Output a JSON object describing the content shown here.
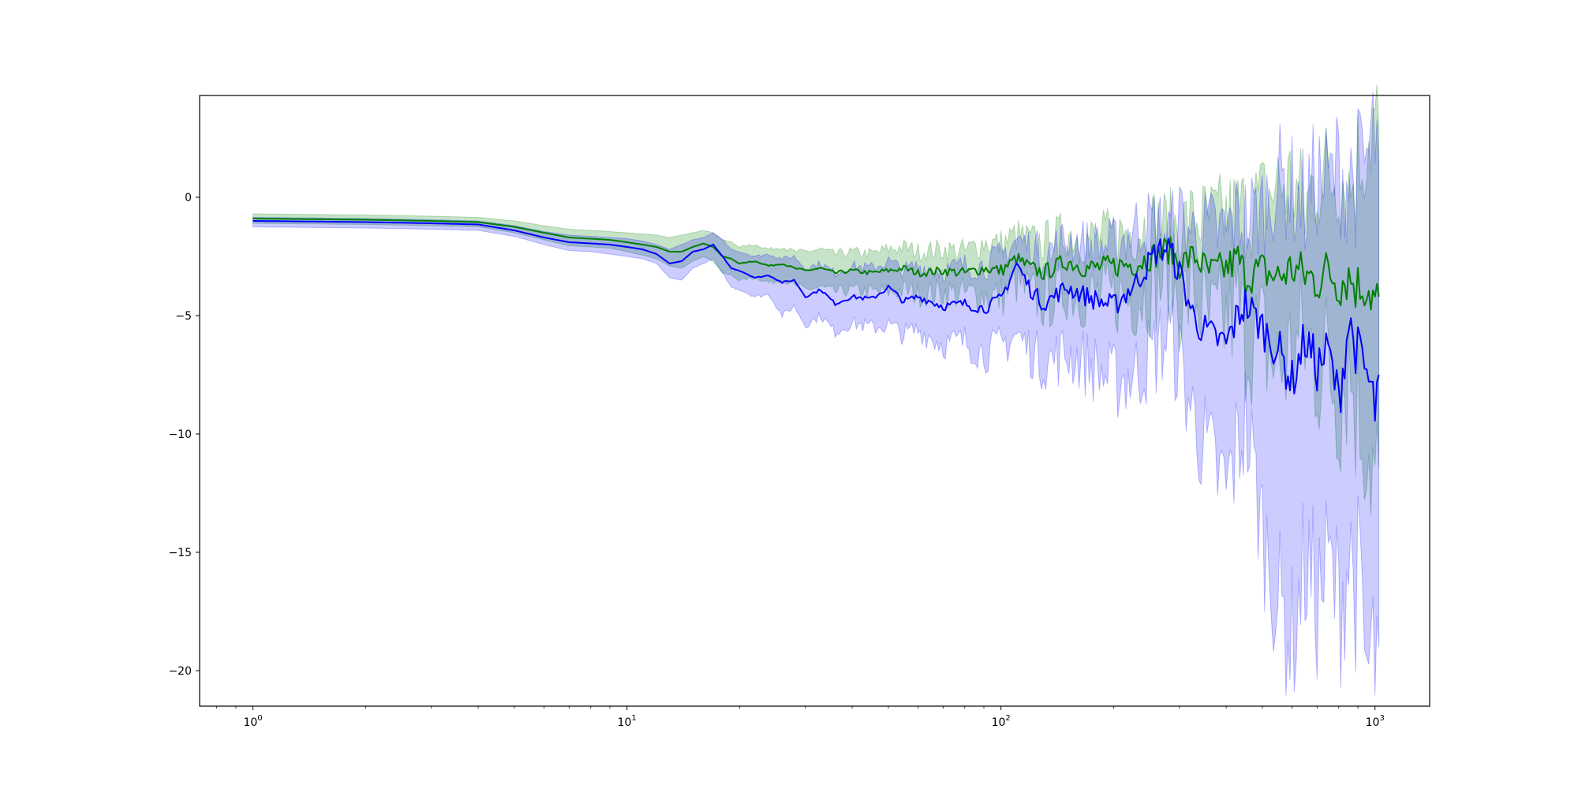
{
  "chart_data": {
    "type": "line",
    "title": "",
    "xlabel": "",
    "ylabel": "",
    "xscale": "log",
    "xlim": [
      0.72,
      1400
    ],
    "ylim": [
      -21.5,
      4.3
    ],
    "grid": false,
    "legend": "none",
    "x_ticks": [
      {
        "value": 1,
        "base": "10",
        "exp": "0"
      },
      {
        "value": 10,
        "base": "10",
        "exp": "1"
      },
      {
        "value": 100,
        "base": "10",
        "exp": "2"
      },
      {
        "value": 1000,
        "base": "10",
        "exp": "3"
      }
    ],
    "y_ticks": [
      {
        "value": 0,
        "label": "0"
      },
      {
        "value": -5,
        "label": "−5"
      },
      {
        "value": -10,
        "label": "−10"
      },
      {
        "value": -15,
        "label": "−15"
      },
      {
        "value": -20,
        "label": "−20"
      }
    ],
    "series": [
      {
        "color": "#008000",
        "x": [
          1,
          2,
          3,
          4,
          5,
          6,
          7,
          8,
          9,
          10,
          11,
          12,
          13,
          14,
          15,
          16,
          17,
          18,
          19,
          20,
          22,
          24,
          26,
          28,
          30,
          33,
          36,
          40,
          45,
          50,
          55,
          60,
          70,
          80,
          90,
          100,
          110,
          120,
          130,
          150,
          170,
          200,
          230,
          260,
          280,
          300,
          330,
          360,
          400,
          430,
          450,
          500,
          550,
          600,
          650,
          700,
          750,
          800,
          850,
          900,
          950,
          1000,
          1024
        ],
        "values": [
          -0.9,
          -0.95,
          -1.0,
          -1.05,
          -1.25,
          -1.5,
          -1.7,
          -1.75,
          -1.8,
          -1.9,
          -2.0,
          -2.1,
          -2.3,
          -2.3,
          -2.1,
          -1.95,
          -2.1,
          -2.5,
          -2.6,
          -2.8,
          -2.7,
          -2.9,
          -2.8,
          -3.0,
          -3.1,
          -3.0,
          -3.2,
          -3.1,
          -3.2,
          -3.1,
          -3.0,
          -3.2,
          -3.1,
          -3.2,
          -3.0,
          -3.1,
          -2.6,
          -3.0,
          -3.2,
          -2.7,
          -3.0,
          -2.9,
          -2.8,
          -2.4,
          -2.2,
          -2.8,
          -2.5,
          -3.2,
          -3.0,
          -2.6,
          -3.3,
          -3.1,
          -3.4,
          -3.0,
          -3.3,
          -3.5,
          -3.1,
          -3.6,
          -3.3,
          -3.8,
          -3.6,
          -4.4,
          -4.2
        ],
        "band_upper": [
          -0.7,
          -0.75,
          -0.8,
          -0.85,
          -1.0,
          -1.2,
          -1.35,
          -1.4,
          -1.45,
          -1.5,
          -1.55,
          -1.6,
          -1.7,
          -1.6,
          -1.5,
          -1.4,
          -1.5,
          -1.8,
          -1.9,
          -2.1,
          -2.0,
          -2.2,
          -2.1,
          -2.3,
          -2.3,
          -2.2,
          -2.4,
          -2.3,
          -2.4,
          -2.2,
          -2.1,
          -2.3,
          -2.2,
          -2.3,
          -1.9,
          -2.0,
          -1.6,
          -1.9,
          -1.9,
          -1.5,
          -1.8,
          -1.6,
          -1.4,
          -1.0,
          -1.2,
          -1.2,
          -0.9,
          -1.0,
          -0.8,
          -0.6,
          -0.6,
          -0.2,
          0.5,
          0.6,
          -0.6,
          1.0,
          0.8,
          1.2,
          0.3,
          1.4,
          2.6,
          3.2,
          3.0
        ],
        "band_lower": [
          -1.1,
          -1.15,
          -1.2,
          -1.25,
          -1.5,
          -1.8,
          -2.05,
          -2.1,
          -2.15,
          -2.3,
          -2.45,
          -2.6,
          -2.9,
          -3.0,
          -2.7,
          -2.5,
          -2.7,
          -3.2,
          -3.3,
          -3.5,
          -3.4,
          -3.6,
          -3.5,
          -3.7,
          -3.9,
          -3.8,
          -4.0,
          -3.9,
          -4.0,
          -4.0,
          -3.9,
          -4.1,
          -4.0,
          -4.1,
          -4.1,
          -4.2,
          -3.6,
          -4.1,
          -4.5,
          -3.9,
          -4.2,
          -4.2,
          -4.2,
          -3.8,
          -3.2,
          -4.4,
          -4.1,
          -5.4,
          -5.2,
          -4.6,
          -6.0,
          -6.0,
          -7.3,
          -6.6,
          -6.0,
          -7.0,
          -7.0,
          -8.4,
          -6.9,
          -9.0,
          -9.8,
          -12.0,
          -11.4
        ]
      },
      {
        "color": "#0000ff",
        "x": [
          1,
          2,
          3,
          4,
          5,
          6,
          7,
          8,
          9,
          10,
          11,
          12,
          13,
          14,
          15,
          16,
          17,
          18,
          19,
          20,
          22,
          24,
          26,
          28,
          30,
          33,
          36,
          40,
          45,
          50,
          55,
          60,
          70,
          80,
          90,
          100,
          110,
          120,
          130,
          150,
          170,
          200,
          230,
          260,
          280,
          300,
          330,
          360,
          400,
          430,
          450,
          500,
          550,
          600,
          650,
          700,
          750,
          800,
          850,
          900,
          950,
          1000,
          1024
        ],
        "values": [
          -1.0,
          -1.05,
          -1.1,
          -1.15,
          -1.4,
          -1.7,
          -1.9,
          -1.95,
          -2.0,
          -2.1,
          -2.2,
          -2.4,
          -2.8,
          -2.7,
          -2.3,
          -2.2,
          -2.0,
          -2.5,
          -3.0,
          -3.1,
          -3.4,
          -3.3,
          -3.6,
          -3.5,
          -4.2,
          -3.9,
          -4.5,
          -4.2,
          -4.3,
          -3.8,
          -4.4,
          -4.2,
          -4.6,
          -4.5,
          -4.7,
          -4.3,
          -2.8,
          -3.9,
          -4.5,
          -3.8,
          -4.2,
          -4.6,
          -3.6,
          -2.3,
          -2.1,
          -3.2,
          -5.2,
          -5.8,
          -6.2,
          -5.0,
          -4.5,
          -5.5,
          -6.4,
          -7.8,
          -6.0,
          -7.2,
          -6.5,
          -8.6,
          -5.3,
          -6.6,
          -7.5,
          -9.0,
          -7.5
        ],
        "band_upper": [
          -0.85,
          -0.9,
          -0.95,
          -1.0,
          -1.2,
          -1.45,
          -1.6,
          -1.65,
          -1.7,
          -1.75,
          -1.85,
          -2.0,
          -2.2,
          -2.0,
          -1.8,
          -1.7,
          -1.5,
          -1.8,
          -2.2,
          -2.3,
          -2.5,
          -2.4,
          -2.6,
          -2.5,
          -3.0,
          -2.8,
          -3.2,
          -2.9,
          -3.0,
          -2.7,
          -3.1,
          -2.9,
          -3.1,
          -2.9,
          -2.9,
          -2.5,
          -1.8,
          -2.1,
          -2.4,
          -1.8,
          -2.0,
          -2.1,
          -1.2,
          -1.0,
          -1.5,
          -0.8,
          -1.6,
          -1.4,
          -1.5,
          -0.8,
          -1.0,
          -0.5,
          0.8,
          0.3,
          -0.4,
          0.9,
          0.5,
          1.3,
          0.7,
          0.9,
          1.5,
          2.6,
          1.6
        ],
        "band_lower": [
          -1.25,
          -1.3,
          -1.35,
          -1.4,
          -1.65,
          -2.0,
          -2.25,
          -2.3,
          -2.4,
          -2.5,
          -2.6,
          -2.8,
          -3.4,
          -3.5,
          -3.0,
          -2.8,
          -2.6,
          -3.2,
          -3.8,
          -3.9,
          -4.2,
          -4.1,
          -5.0,
          -4.6,
          -5.4,
          -5.0,
          -5.7,
          -5.3,
          -5.5,
          -5.4,
          -5.8,
          -5.6,
          -6.2,
          -6.1,
          -6.6,
          -6.3,
          -5.8,
          -6.5,
          -7.0,
          -6.6,
          -7.0,
          -7.8,
          -7.4,
          -6.5,
          -5.8,
          -7.0,
          -9.5,
          -11.0,
          -12.4,
          -10.5,
          -9.4,
          -14.0,
          -17.0,
          -18.7,
          -15.5,
          -17.0,
          -15.6,
          -17.2,
          -15.2,
          -16.4,
          -20.2,
          -19.5,
          -19.0
        ]
      }
    ]
  }
}
